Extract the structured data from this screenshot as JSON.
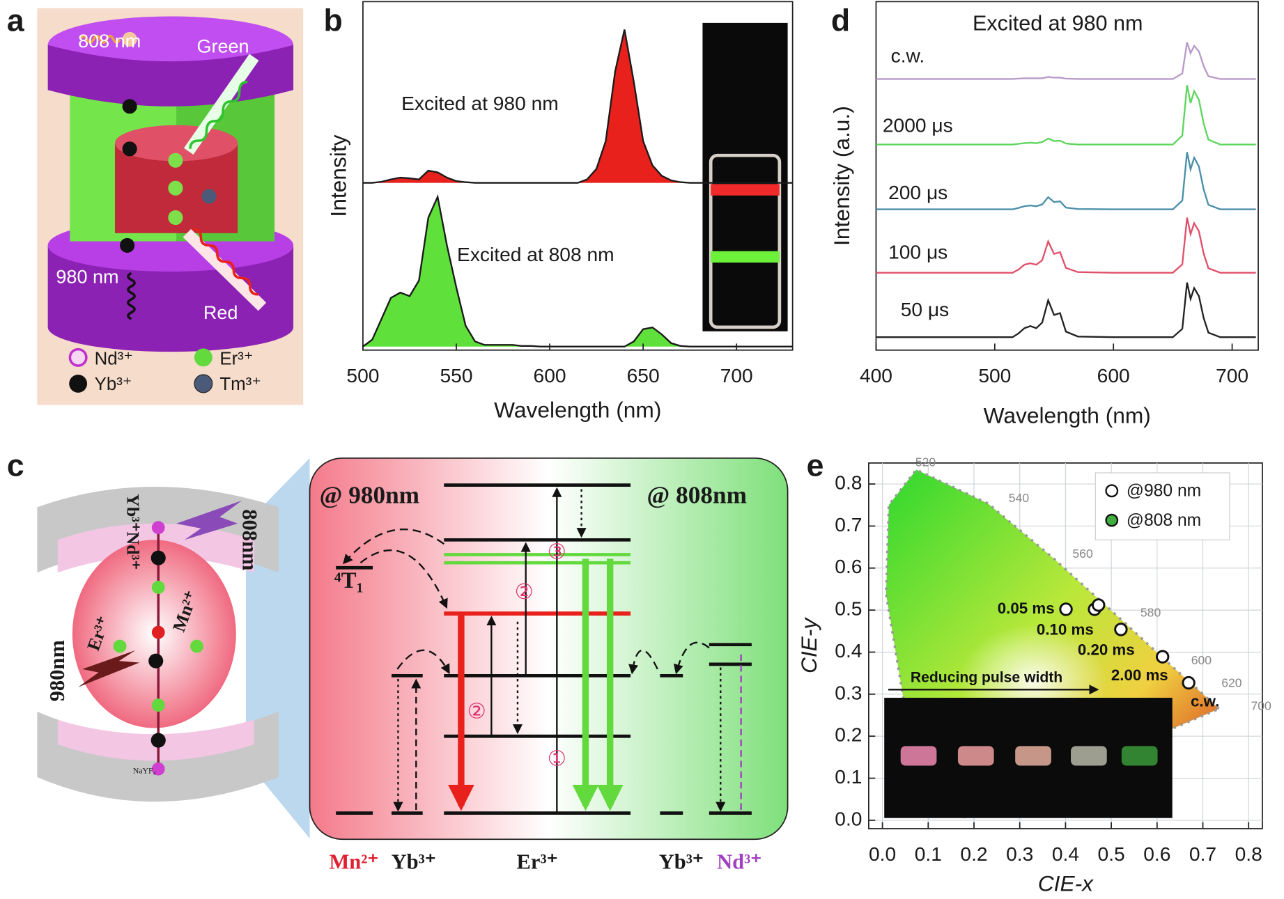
{
  "panels": [
    "a",
    "b",
    "c",
    "d",
    "e"
  ],
  "panel_a": {
    "labels": [
      "808 nm",
      "Green",
      "980 nm",
      "Red"
    ],
    "legend": [
      "Nd³⁺",
      "Er³⁺",
      "Yb³⁺",
      "Tm³⁺"
    ]
  },
  "panel_c": {
    "left_labels": [
      "Yb³⁺Nd³⁺",
      "808nm",
      "Er³⁺",
      "Mn²⁺",
      "980nm",
      "NaYF₄"
    ],
    "headers": [
      "@ 980nm",
      "@ 808nm"
    ],
    "state": "⁴T₁",
    "steps": [
      "③",
      "②",
      "②",
      "①"
    ],
    "ions": [
      "Mn²⁺",
      "Yb³⁺",
      "Er³⁺",
      "Yb³⁺",
      "Nd³⁺"
    ]
  },
  "chart_data": [
    {
      "type": "line",
      "xlabel": "Wavelength (nm)",
      "ylabel": "Intensity",
      "xlim": [
        500,
        730
      ],
      "ylim": [
        0,
        100
      ],
      "xticks": [
        500,
        550,
        600,
        650,
        700
      ],
      "x": [
        500,
        505,
        510,
        515,
        520,
        525,
        530,
        535,
        540,
        545,
        550,
        555,
        560,
        565,
        570,
        575,
        580,
        585,
        590,
        595,
        600,
        605,
        610,
        615,
        620,
        625,
        630,
        635,
        640,
        645,
        650,
        655,
        660,
        665,
        670,
        675,
        680,
        685,
        690,
        695,
        700,
        705,
        710,
        715,
        720,
        725,
        730
      ],
      "series": [
        {
          "name": "Excited at 980 nm",
          "color": "#e8211c",
          "fill": true,
          "values": [
            48,
            48,
            48.3,
            49,
            49.5,
            49.3,
            49,
            51.5,
            51,
            49.5,
            48.5,
            48.2,
            48,
            48,
            48,
            48,
            48,
            48,
            48,
            48,
            48,
            48,
            48,
            48,
            49,
            52,
            60,
            80,
            92,
            77,
            60,
            53,
            50,
            48.7,
            48.2,
            48,
            48,
            48,
            48,
            48,
            48,
            48,
            48,
            48,
            48,
            48,
            48
          ]
        },
        {
          "name": "Excited at 808 nm",
          "color": "#5fe03a",
          "fill": true,
          "values": [
            1,
            3,
            9,
            15,
            16.5,
            15.5,
            20,
            38,
            44,
            30,
            18,
            7,
            2.5,
            1.5,
            1.5,
            1.5,
            1.5,
            1.2,
            1.2,
            1,
            1,
            1,
            1,
            1,
            1,
            1,
            1,
            1,
            1,
            2.5,
            6,
            6.5,
            4.5,
            2,
            1.2,
            1,
            1,
            1,
            1,
            1,
            1,
            1,
            1,
            1,
            1,
            1,
            1
          ]
        }
      ]
    },
    {
      "type": "line",
      "title": "Excited at 980 nm",
      "xlabel": "Wavelength (nm)",
      "ylabel": "Intensity (a.u.)",
      "xlim": [
        400,
        722
      ],
      "ylim": [
        0,
        100
      ],
      "xticks": [
        400,
        500,
        600,
        700
      ],
      "x": [
        400,
        450,
        500,
        515,
        520,
        525,
        530,
        535,
        540,
        545,
        550,
        555,
        560,
        570,
        600,
        650,
        658,
        662,
        665,
        668,
        672,
        676,
        680,
        690,
        720
      ],
      "series": [
        {
          "name": "c.w.",
          "color": "#b89ac8",
          "values": [
            77.8,
            77.8,
            77.8,
            77.8,
            77.9,
            78,
            78,
            78,
            78,
            78.4,
            78.2,
            78.2,
            77.9,
            77.8,
            77.8,
            77.8,
            79.4,
            88.3,
            85.2,
            87.3,
            85.7,
            81.5,
            78.6,
            77.8,
            77.8
          ]
        },
        {
          "name": "2000 μs",
          "color": "#5ed65e",
          "values": [
            59,
            59,
            59,
            59,
            59.2,
            59.4,
            59.5,
            59.4,
            59.7,
            60.7,
            60,
            60.1,
            59.3,
            59,
            59,
            59,
            61.6,
            76,
            70.9,
            74.3,
            71.8,
            65,
            60.4,
            59,
            59
          ]
        },
        {
          "name": "200 μs",
          "color": "#4a8fa8",
          "values": [
            40.4,
            40.4,
            40.4,
            40.4,
            40.8,
            41.3,
            41.5,
            41.3,
            41.8,
            43.9,
            42.5,
            42.7,
            40.9,
            40.5,
            40.4,
            40.4,
            42.9,
            56.8,
            51.9,
            55.2,
            52.7,
            46.1,
            41.7,
            40.4,
            40.4
          ]
        },
        {
          "name": "100 μs",
          "color": "#e0506a",
          "values": [
            22.2,
            22.2,
            22.2,
            22.2,
            23.1,
            24.5,
            24.9,
            24.5,
            25.8,
            31.2,
            27.6,
            28.1,
            23.6,
            22.4,
            22.2,
            22.2,
            24.6,
            38,
            33.3,
            36.4,
            34.1,
            27.7,
            23.5,
            22.2,
            22.2
          ]
        },
        {
          "name": "50 μs",
          "color": "#222222",
          "values": [
            3.7,
            3.7,
            3.7,
            3.7,
            4.8,
            6.3,
            6.9,
            6.3,
            7.9,
            14.3,
            10.1,
            10.6,
            5.3,
            3.9,
            3.7,
            3.7,
            6.1,
            19.4,
            14.7,
            17.8,
            15.5,
            9.2,
            5,
            3.7,
            3.7
          ]
        }
      ]
    },
    {
      "type": "scatter",
      "xlabel": "CIE-x",
      "ylabel": "CIE-y",
      "xlim": [
        -0.03,
        0.83
      ],
      "ylim": [
        -0.02,
        0.85
      ],
      "grid": true,
      "legend": "upper right",
      "xticks": [
        {
          "value": 0,
          "label": "0.0"
        },
        {
          "value": 0.1,
          "label": "0.1"
        },
        {
          "value": 0.2,
          "label": "0.2"
        },
        {
          "value": 0.3,
          "label": "0.3"
        },
        {
          "value": 0.4,
          "label": "0.4"
        },
        {
          "value": 0.5,
          "label": "0.5"
        },
        {
          "value": 0.6,
          "label": "0.6"
        },
        {
          "value": 0.7,
          "label": "0.7"
        },
        {
          "value": 0.8,
          "label": "0.8"
        }
      ],
      "yticks": [
        {
          "value": 0,
          "label": "0.0"
        },
        {
          "value": 0.1,
          "label": "0.1"
        },
        {
          "value": 0.2,
          "label": "0.2"
        },
        {
          "value": 0.3,
          "label": "0.3"
        },
        {
          "value": 0.4,
          "label": "0.4"
        },
        {
          "value": 0.5,
          "label": "0.5"
        },
        {
          "value": 0.6,
          "label": "0.6"
        },
        {
          "value": 0.7,
          "label": "0.7"
        },
        {
          "value": 0.8,
          "label": "0.8"
        }
      ],
      "locus_labels": [
        "520",
        "540",
        "560",
        "580",
        "600",
        "620",
        "700"
      ],
      "annotation": "Reducing pulse width",
      "series": [
        {
          "name": "@980 nm",
          "color": "#ffffff",
          "x": [
            0.401,
            0.4635,
            0.472,
            0.521,
            0.612,
            0.669
          ],
          "y": [
            0.502,
            0.502,
            0.512,
            0.454,
            0.389,
            0.327
          ],
          "labels": [
            "0.05 ms",
            "0.10 ms",
            null,
            "0.20 ms",
            "2.00 ms",
            "c.w."
          ]
        },
        {
          "name": "@808 nm",
          "color": "#3fae3f",
          "x": [],
          "y": []
        }
      ]
    }
  ]
}
